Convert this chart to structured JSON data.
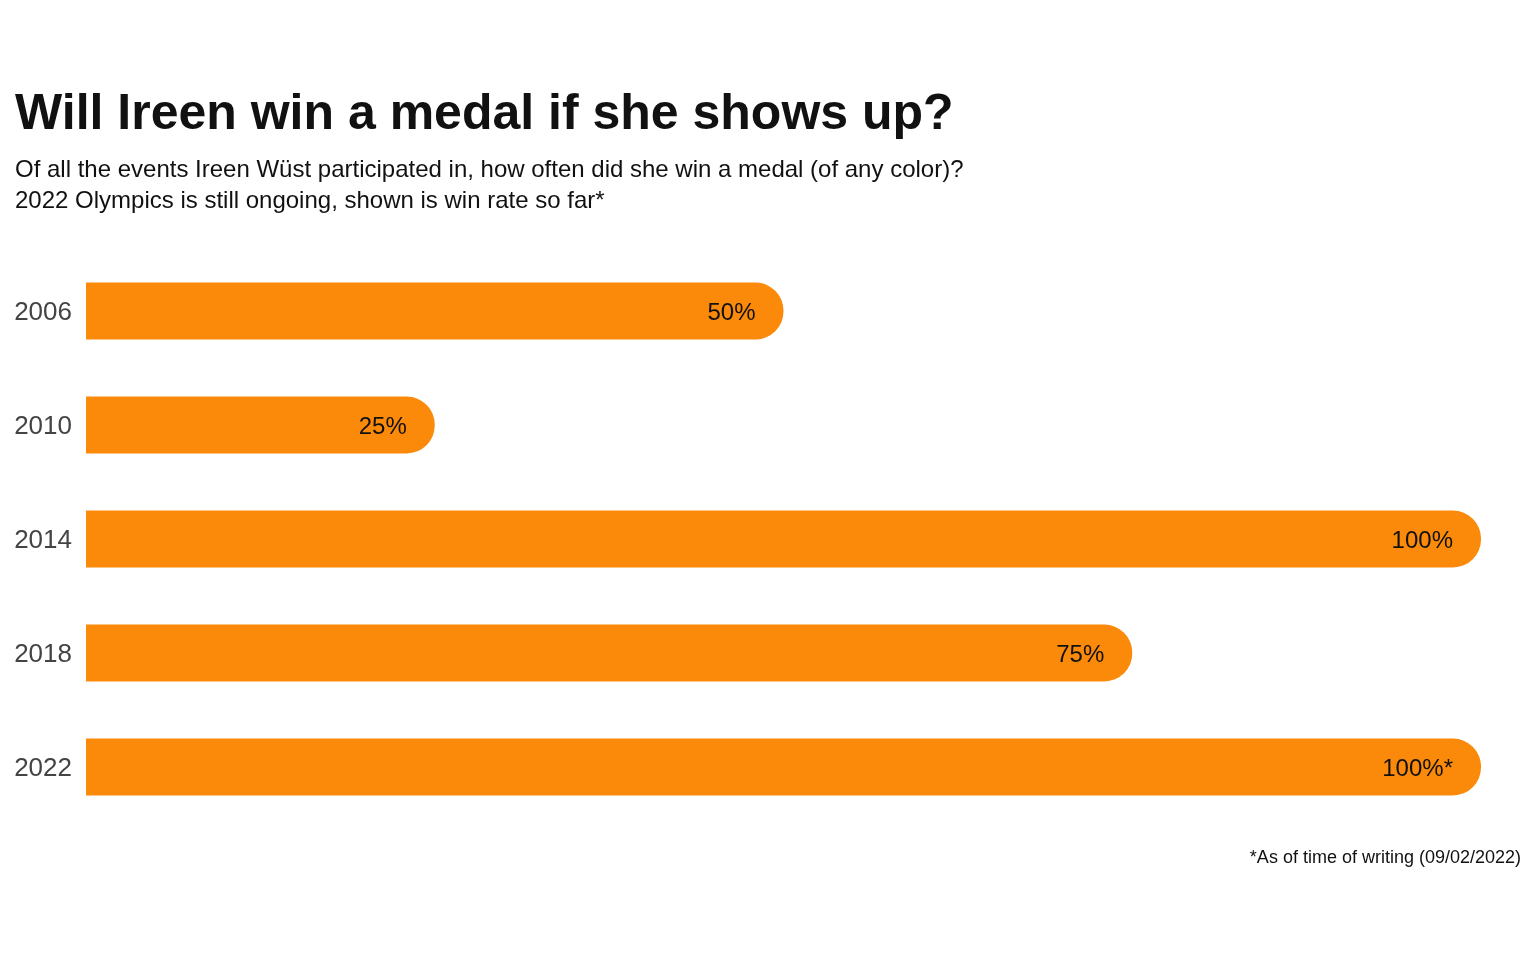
{
  "chart_data": {
    "type": "bar",
    "orientation": "horizontal",
    "title": "Will Ireen win a medal if she shows up?",
    "subtitle": "Of all the events Ireen Wüst participated in, how often did she win a medal (of any color)?\n2022 Olympics is still ongoing, shown is win rate so far*",
    "categories": [
      "2006",
      "2010",
      "2014",
      "2018",
      "2022"
    ],
    "values": [
      50,
      25,
      100,
      75,
      100
    ],
    "value_labels": [
      "50%",
      "25%",
      "100%",
      "75%",
      "100%*"
    ],
    "color": "#fb8a0a",
    "xlim": [
      0,
      100
    ],
    "tick_labels": "y",
    "annotations": [
      "*As of time of writing (09/02/2022)"
    ]
  }
}
